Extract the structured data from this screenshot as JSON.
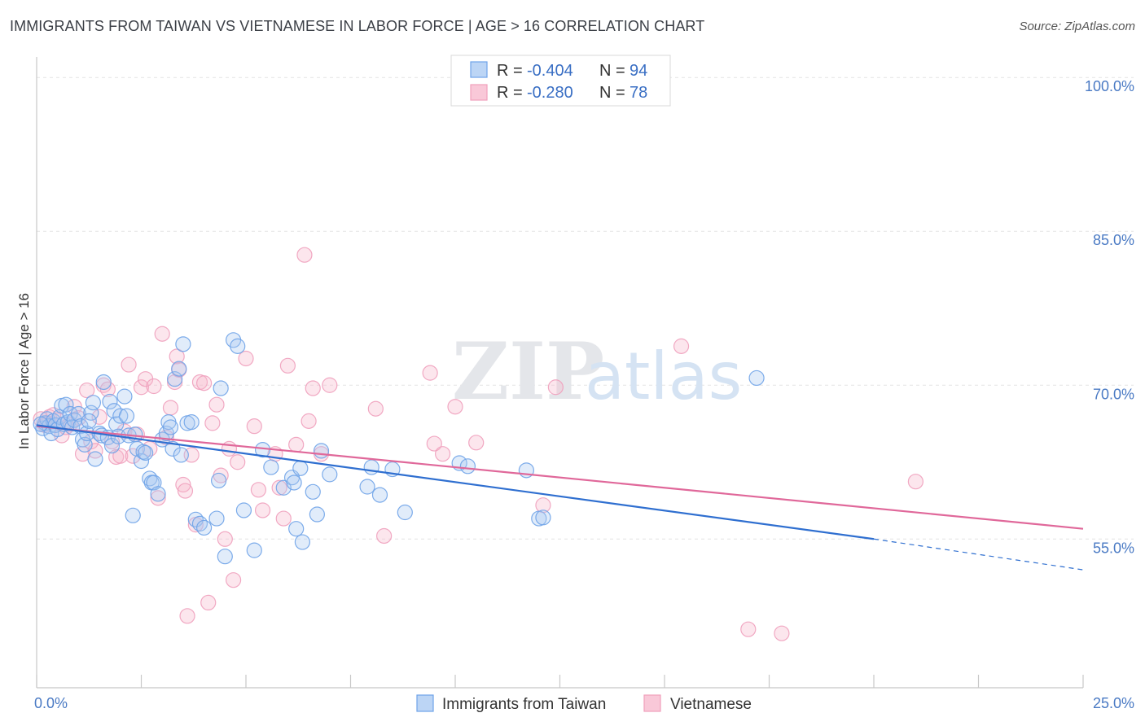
{
  "title": "IMMIGRANTS FROM TAIWAN VS VIETNAMESE IN LABOR FORCE | AGE > 16 CORRELATION CHART",
  "source": "Source: ZipAtlas.com",
  "watermark": {
    "zip": "ZIP",
    "atlas": "atlas"
  },
  "legend": {
    "rows": [
      {
        "r_label": "R =",
        "r_value": "-0.404",
        "n_label": "N =",
        "n_value": "94"
      },
      {
        "r_label": "R =",
        "r_value": "-0.280",
        "n_label": "N =",
        "n_value": "78"
      }
    ]
  },
  "chart_data": {
    "type": "scatter",
    "title": "IMMIGRANTS FROM TAIWAN VS VIETNAMESE IN LABOR FORCE | AGE > 16 CORRELATION CHART",
    "xlabel": "",
    "ylabel": "In Labor Force | Age > 16",
    "xlim": [
      0,
      25
    ],
    "ylim": [
      40.5,
      102
    ],
    "x_tick_labels": [
      {
        "value": 0,
        "label": "0.0%"
      },
      {
        "value": 25,
        "label": "25.0%"
      }
    ],
    "y_tick_labels": [
      {
        "value": 55,
        "label": "55.0%"
      },
      {
        "value": 70,
        "label": "70.0%"
      },
      {
        "value": 85,
        "label": "85.0%"
      },
      {
        "value": 100,
        "label": "100.0%"
      }
    ],
    "colors": {
      "taiwan": "#6fa3e8",
      "vietnamese": "#f0a0bc",
      "taiwan_line": "#2f6fd0",
      "vietnamese_line": "#e0689a"
    },
    "series": [
      {
        "name": "Immigrants from Taiwan",
        "trend": {
          "x_start": 0,
          "y_start": 66.1,
          "x_end": 20.0,
          "y_end": 55.0,
          "dash_x_end": 25.0,
          "dash_y_end": 52.0
        },
        "points": [
          [
            0.15,
            65.8
          ],
          [
            0.2,
            66.3
          ],
          [
            0.25,
            66.7
          ],
          [
            0.3,
            66.0
          ],
          [
            0.35,
            65.3
          ],
          [
            0.4,
            66.5
          ],
          [
            0.45,
            66.1
          ],
          [
            0.5,
            65.7
          ],
          [
            0.55,
            66.9
          ],
          [
            0.6,
            68.0
          ],
          [
            0.65,
            66.2
          ],
          [
            0.7,
            68.1
          ],
          [
            0.75,
            66.4
          ],
          [
            0.8,
            67.2
          ],
          [
            0.85,
            65.9
          ],
          [
            0.9,
            66.6
          ],
          [
            1.0,
            67.2
          ],
          [
            1.05,
            66.0
          ],
          [
            1.1,
            64.7
          ],
          [
            1.15,
            64.2
          ],
          [
            1.2,
            65.3
          ],
          [
            1.3,
            67.3
          ],
          [
            1.35,
            68.3
          ],
          [
            1.4,
            62.8
          ],
          [
            1.5,
            65.3
          ],
          [
            1.55,
            65.1
          ],
          [
            1.6,
            70.3
          ],
          [
            1.7,
            64.9
          ],
          [
            1.75,
            68.4
          ],
          [
            1.8,
            64.1
          ],
          [
            1.85,
            67.5
          ],
          [
            1.9,
            66.2
          ],
          [
            1.95,
            65.0
          ],
          [
            2.0,
            67.0
          ],
          [
            2.1,
            68.9
          ],
          [
            2.2,
            65.1
          ],
          [
            2.3,
            57.3
          ],
          [
            2.35,
            65.2
          ],
          [
            2.4,
            63.8
          ],
          [
            2.5,
            62.6
          ],
          [
            2.55,
            63.5
          ],
          [
            2.6,
            63.4
          ],
          [
            2.7,
            60.9
          ],
          [
            2.75,
            60.5
          ],
          [
            2.8,
            60.5
          ],
          [
            2.9,
            59.4
          ],
          [
            3.0,
            64.7
          ],
          [
            3.1,
            65.3
          ],
          [
            3.15,
            66.4
          ],
          [
            3.25,
            63.8
          ],
          [
            3.3,
            70.6
          ],
          [
            3.4,
            71.6
          ],
          [
            3.45,
            63.2
          ],
          [
            3.5,
            74.0
          ],
          [
            3.6,
            66.3
          ],
          [
            3.7,
            66.4
          ],
          [
            3.8,
            56.9
          ],
          [
            3.9,
            56.5
          ],
          [
            4.0,
            56.1
          ],
          [
            4.3,
            57.0
          ],
          [
            4.35,
            60.7
          ],
          [
            4.4,
            69.7
          ],
          [
            4.5,
            53.3
          ],
          [
            4.7,
            74.4
          ],
          [
            4.8,
            73.8
          ],
          [
            4.95,
            57.8
          ],
          [
            5.2,
            53.9
          ],
          [
            5.4,
            63.7
          ],
          [
            5.6,
            62.0
          ],
          [
            5.9,
            60.0
          ],
          [
            6.1,
            61.0
          ],
          [
            6.15,
            60.5
          ],
          [
            6.2,
            56.0
          ],
          [
            6.3,
            61.9
          ],
          [
            6.35,
            54.7
          ],
          [
            6.6,
            59.6
          ],
          [
            6.7,
            57.4
          ],
          [
            6.8,
            63.6
          ],
          [
            7.0,
            61.3
          ],
          [
            7.9,
            60.1
          ],
          [
            8.0,
            62.0
          ],
          [
            8.2,
            59.3
          ],
          [
            8.5,
            61.8
          ],
          [
            8.8,
            57.6
          ],
          [
            10.1,
            62.4
          ],
          [
            10.3,
            62.1
          ],
          [
            11.7,
            61.7
          ],
          [
            12.0,
            57.0
          ],
          [
            12.1,
            57.1
          ],
          [
            17.2,
            70.7
          ],
          [
            0.1,
            66.2
          ],
          [
            1.25,
            66.5
          ],
          [
            2.15,
            67.0
          ],
          [
            3.2,
            65.9
          ]
        ]
      },
      {
        "name": "Vietnamese",
        "trend": {
          "x_start": 0,
          "y_start": 66.0,
          "x_end": 25.0,
          "y_end": 56.0
        },
        "points": [
          [
            0.1,
            66.7
          ],
          [
            0.2,
            66.1
          ],
          [
            0.3,
            66.9
          ],
          [
            0.4,
            67.1
          ],
          [
            0.5,
            66.6
          ],
          [
            0.6,
            65.1
          ],
          [
            0.7,
            65.9
          ],
          [
            0.8,
            66.2
          ],
          [
            0.9,
            67.9
          ],
          [
            1.0,
            66.8
          ],
          [
            1.1,
            63.3
          ],
          [
            1.2,
            69.5
          ],
          [
            1.3,
            64.5
          ],
          [
            1.4,
            63.6
          ],
          [
            1.5,
            66.9
          ],
          [
            1.6,
            70.0
          ],
          [
            1.7,
            69.6
          ],
          [
            1.8,
            64.5
          ],
          [
            1.9,
            63.0
          ],
          [
            2.0,
            63.1
          ],
          [
            2.1,
            65.5
          ],
          [
            2.2,
            72.0
          ],
          [
            2.3,
            63.1
          ],
          [
            2.4,
            65.2
          ],
          [
            2.5,
            69.8
          ],
          [
            2.6,
            70.6
          ],
          [
            2.7,
            63.8
          ],
          [
            2.8,
            69.9
          ],
          [
            2.9,
            59.0
          ],
          [
            3.0,
            75.0
          ],
          [
            3.1,
            64.9
          ],
          [
            3.2,
            67.8
          ],
          [
            3.3,
            70.3
          ],
          [
            3.35,
            72.8
          ],
          [
            3.4,
            71.5
          ],
          [
            3.5,
            60.3
          ],
          [
            3.55,
            59.7
          ],
          [
            3.6,
            47.5
          ],
          [
            3.7,
            63.2
          ],
          [
            3.8,
            56.4
          ],
          [
            3.9,
            70.3
          ],
          [
            4.0,
            70.2
          ],
          [
            4.1,
            48.8
          ],
          [
            4.2,
            66.3
          ],
          [
            4.3,
            68.1
          ],
          [
            4.4,
            61.2
          ],
          [
            4.5,
            55.0
          ],
          [
            4.6,
            63.8
          ],
          [
            4.7,
            51.0
          ],
          [
            4.8,
            62.5
          ],
          [
            5.0,
            72.6
          ],
          [
            5.2,
            66.0
          ],
          [
            5.3,
            59.8
          ],
          [
            5.4,
            57.8
          ],
          [
            5.7,
            63.3
          ],
          [
            5.8,
            60.0
          ],
          [
            5.9,
            57.0
          ],
          [
            6.0,
            71.9
          ],
          [
            6.2,
            64.2
          ],
          [
            6.4,
            82.7
          ],
          [
            6.5,
            66.5
          ],
          [
            6.6,
            69.7
          ],
          [
            6.8,
            63.3
          ],
          [
            7.0,
            70.0
          ],
          [
            8.1,
            67.7
          ],
          [
            8.3,
            55.3
          ],
          [
            9.4,
            71.2
          ],
          [
            9.5,
            64.3
          ],
          [
            9.7,
            63.3
          ],
          [
            10.0,
            67.9
          ],
          [
            10.5,
            64.4
          ],
          [
            12.1,
            58.3
          ],
          [
            12.4,
            69.8
          ],
          [
            15.4,
            73.8
          ],
          [
            17.0,
            46.2
          ],
          [
            17.8,
            45.8
          ],
          [
            21.0,
            60.6
          ],
          [
            0.25,
            66.3
          ]
        ]
      }
    ]
  },
  "bottom_legend": {
    "taiwan": "Immigrants from Taiwan",
    "vietnamese": "Vietnamese"
  }
}
